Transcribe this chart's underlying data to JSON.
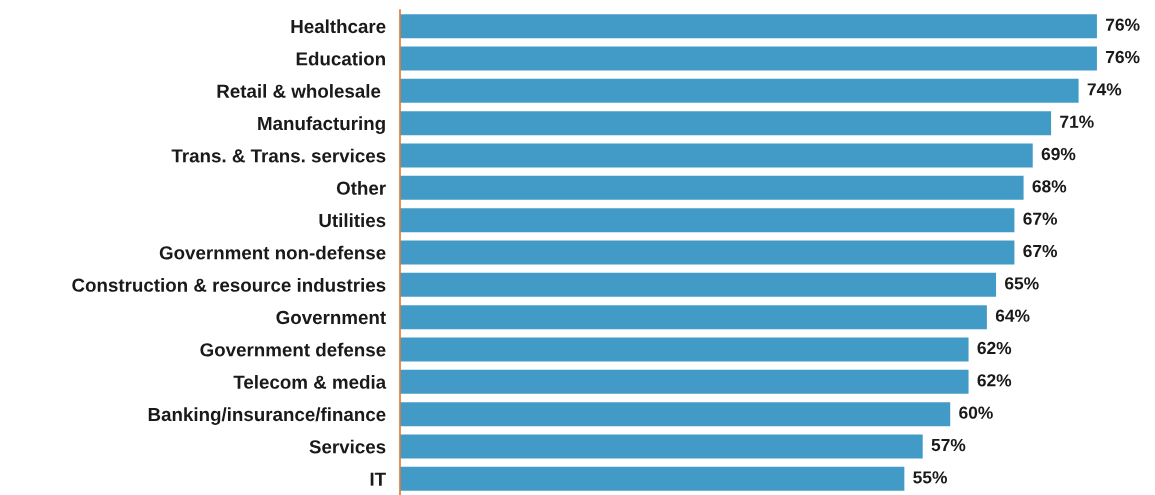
{
  "chart_data": {
    "type": "bar",
    "orientation": "horizontal",
    "categories": [
      "Healthcare",
      "Education",
      "Retail & wholesale ",
      "Manufacturing",
      "Trans. & Trans. services",
      "Other",
      "Utilities",
      "Government non-defense",
      "Construction & resource industries",
      "Government",
      "Government defense",
      "Telecom & media",
      "Banking/insurance/finance",
      "Services",
      "IT"
    ],
    "values": [
      76,
      76,
      74,
      71,
      69,
      68,
      67,
      67,
      65,
      64,
      62,
      62,
      60,
      57,
      55
    ],
    "value_labels": [
      "76%",
      "76%",
      "74%",
      "71%",
      "69%",
      "68%",
      "67%",
      "67%",
      "65%",
      "64%",
      "62%",
      "62%",
      "60%",
      "57%",
      "55%"
    ],
    "color": "#429bc6",
    "tick_labels": "y",
    "grid": false
  }
}
